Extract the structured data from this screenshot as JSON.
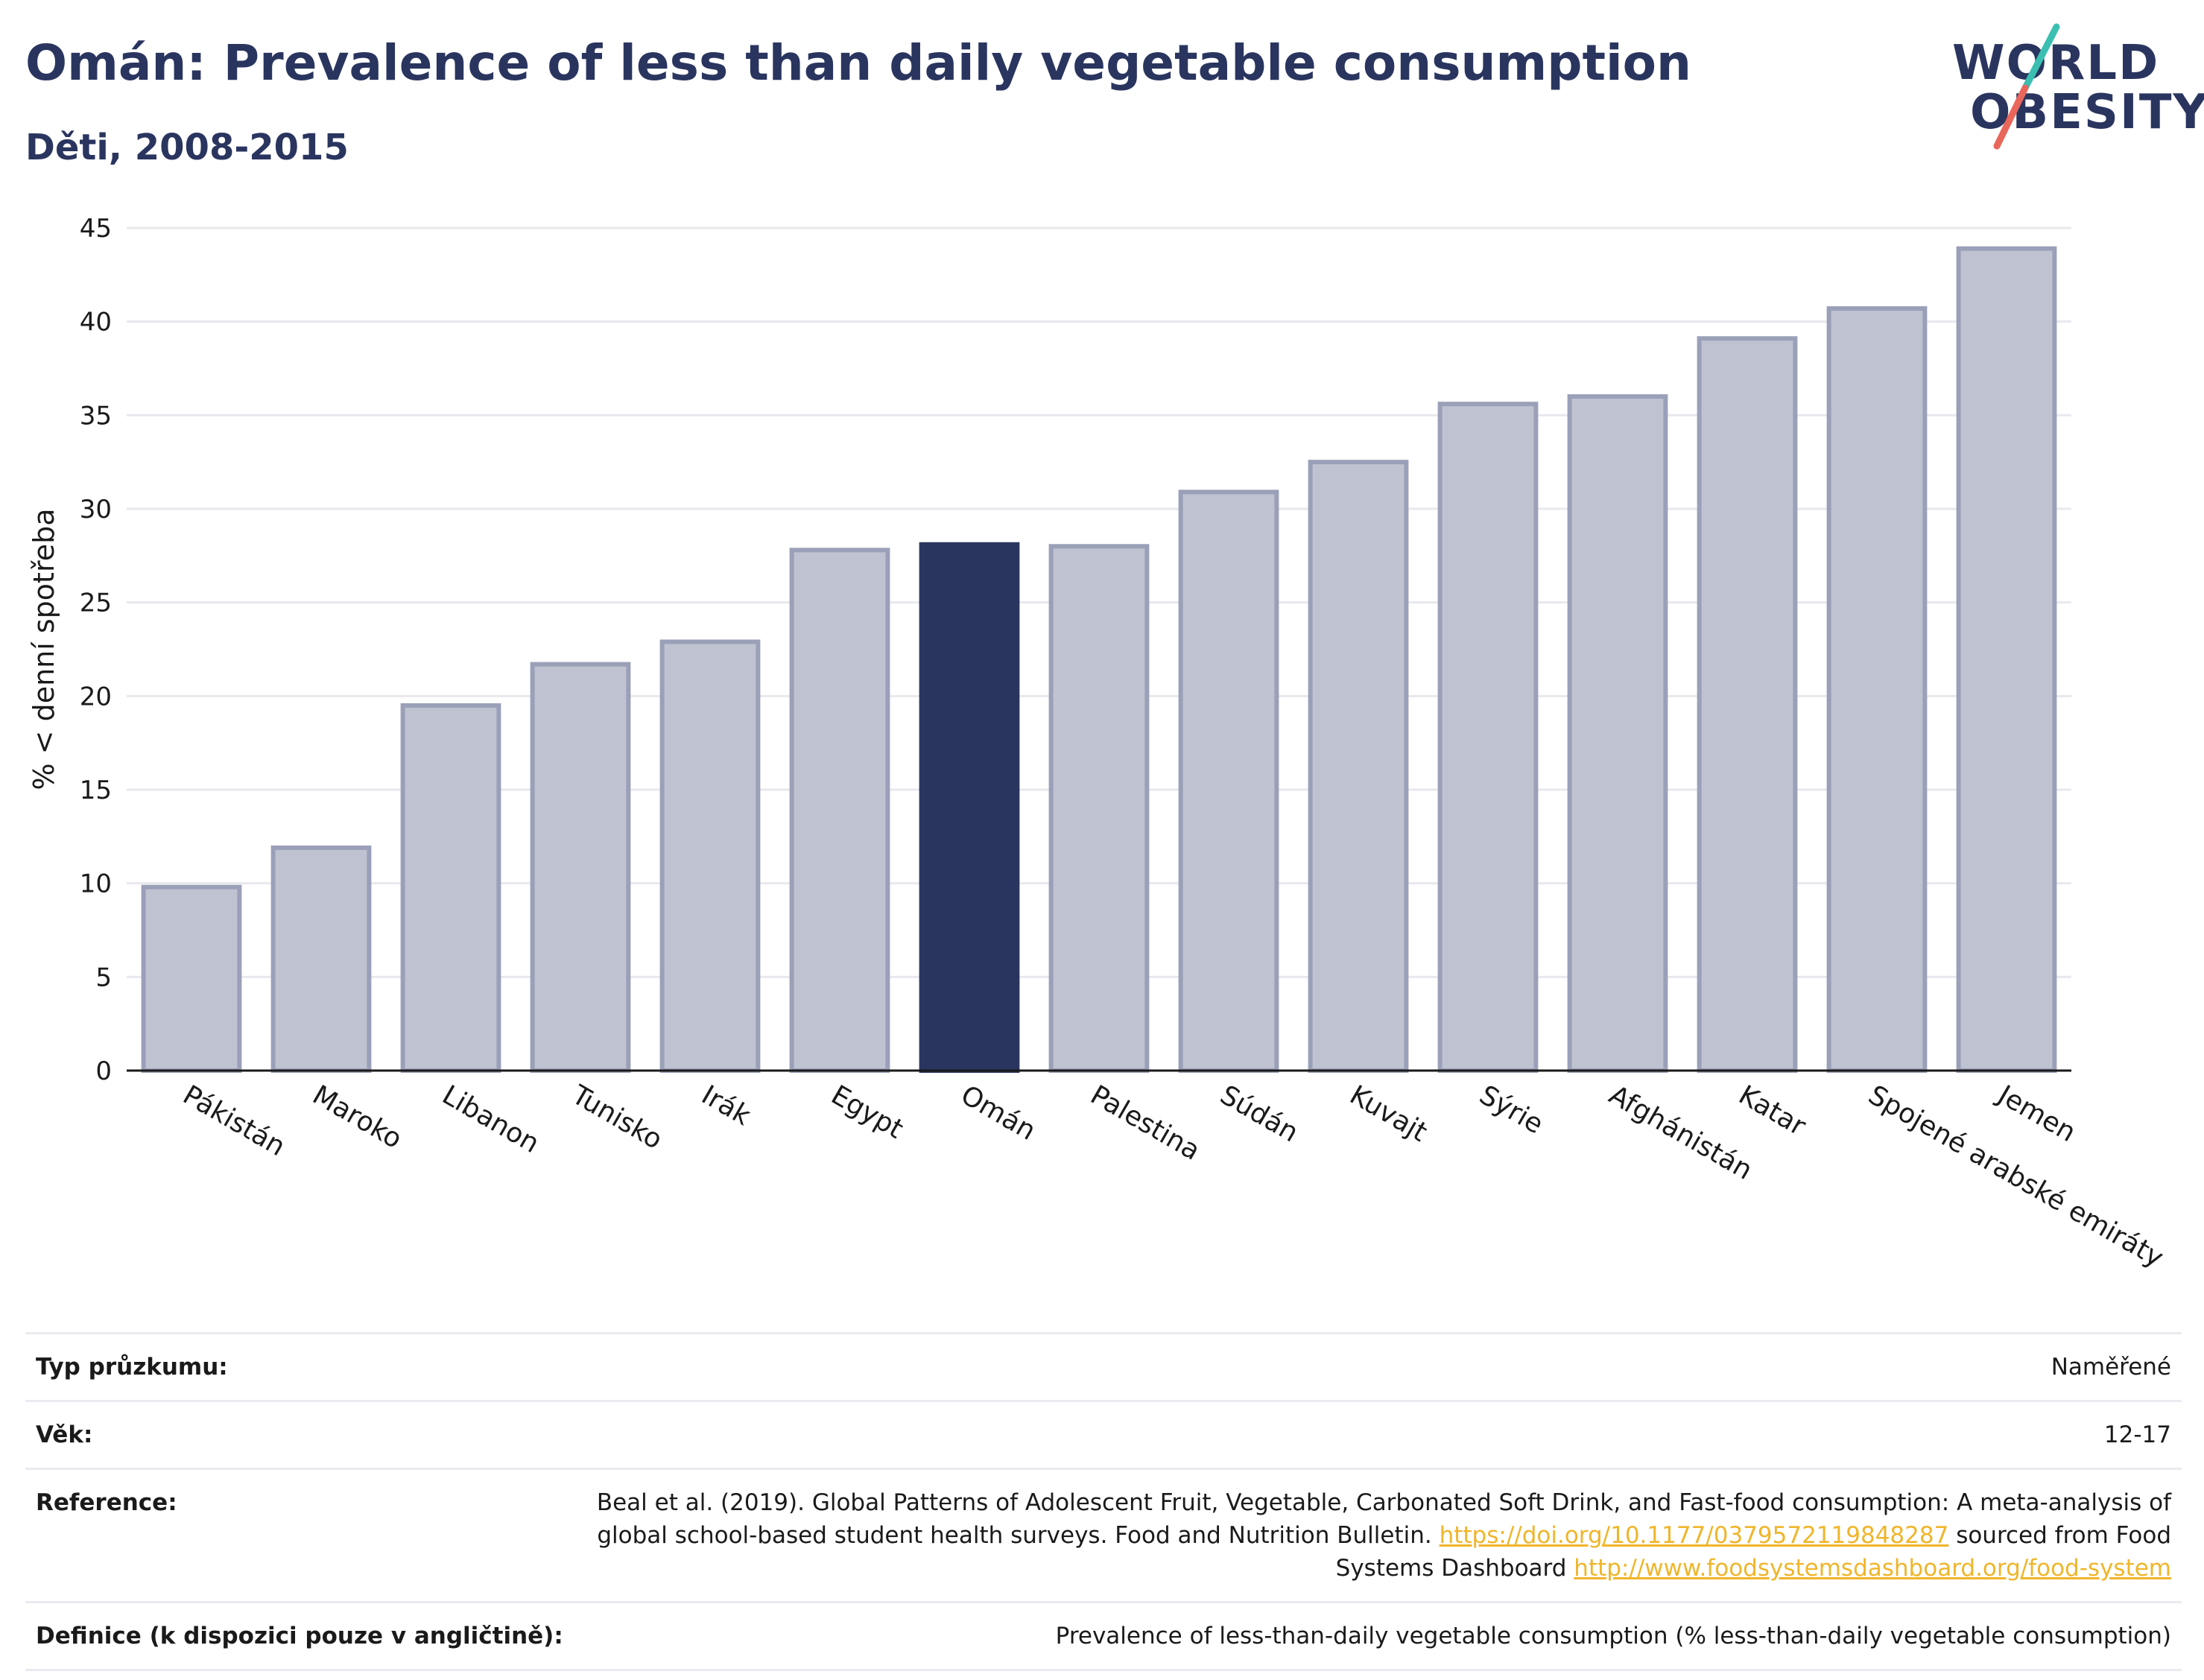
{
  "title": "Omán: Prevalence of less than daily vegetable consumption",
  "subtitle": "Děti, 2008-2015",
  "logo": {
    "line1": "WORLD",
    "line2": "OBESITY"
  },
  "colors": {
    "highlight": "#2a355f",
    "bar": "#bfc3d1",
    "bar_stroke": "#9aa0b8",
    "grid": "#e8e8ee",
    "link": "#f0b52a"
  },
  "chart_data": {
    "type": "bar",
    "ylabel": "% < denní spotřeba",
    "ylim": [
      0,
      45
    ],
    "yticks": [
      0,
      5,
      10,
      15,
      20,
      25,
      30,
      35,
      40,
      45
    ],
    "categories": [
      "Pákistán",
      "Maroko",
      "Libanon",
      "Tunisko",
      "Irák",
      "Egypt",
      "Omán",
      "Palestina",
      "Súdán",
      "Kuvajt",
      "Sýrie",
      "Afghánistán",
      "Katar",
      "Spojené arabské emiráty",
      "Jemen"
    ],
    "values": [
      9.8,
      11.9,
      19.5,
      21.7,
      22.9,
      27.8,
      28.1,
      28.0,
      30.9,
      32.5,
      35.6,
      36.0,
      39.1,
      40.7,
      43.9
    ],
    "highlight": "Omán",
    "grid": true
  },
  "meta": [
    {
      "label": "Typ průzkumu:",
      "value": "Naměřené"
    },
    {
      "label": "Věk:",
      "value": "12-17"
    },
    {
      "label": "Reference:",
      "text1": "Beal et al. (2019). Global Patterns of Adolescent Fruit, Vegetable, Carbonated Soft Drink, and Fast-food consumption: A meta-analysis of global school-based student health surveys. Food and Nutrition Bulletin.",
      "link1": "https://doi.org/10.1177/0379572119848287",
      "text2": "sourced from Food Systems Dashboard",
      "link2": "http://www.foodsystemsdashboard.org/food-system"
    },
    {
      "label": "Definice (k dispozici pouze v angličtině):",
      "value": "Prevalence of less-than-daily vegetable consumption (% less-than-daily vegetable consumption)"
    }
  ]
}
